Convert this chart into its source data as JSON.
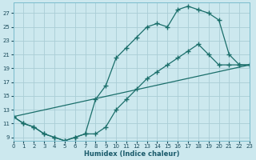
{
  "xlabel": "Humidex (Indice chaleur)",
  "bg_color": "#cce8ee",
  "grid_color": "#aacdd6",
  "line_color": "#1a6e6a",
  "line1_x": [
    0,
    1,
    2,
    3,
    4,
    5,
    6,
    7,
    8,
    9,
    10,
    11,
    12,
    13,
    14,
    15,
    16,
    17,
    18,
    19,
    20,
    21,
    22,
    23
  ],
  "line1_y": [
    12,
    11,
    10.5,
    9.5,
    9,
    8.5,
    9.0,
    9.5,
    14.5,
    16.5,
    20.5,
    22,
    23.5,
    25,
    25.5,
    25,
    27.5,
    28,
    27.5,
    27,
    26,
    21,
    19.5,
    19.5
  ],
  "line2_x": [
    0,
    1,
    2,
    3,
    4,
    5,
    6,
    7,
    8,
    9,
    10,
    11,
    12,
    13,
    14,
    15,
    16,
    17,
    18,
    19,
    20,
    21,
    22,
    23
  ],
  "line2_y": [
    12,
    11,
    10.5,
    9.5,
    9,
    8.5,
    9.0,
    9.5,
    9.5,
    10.5,
    13,
    14.5,
    16,
    17.5,
    18.5,
    19.5,
    20.5,
    21.5,
    22.5,
    21,
    19.5,
    19.5,
    19.5,
    19.5
  ],
  "line3_x": [
    0,
    23
  ],
  "line3_y": [
    12,
    19.5
  ],
  "xlim": [
    0,
    23
  ],
  "ylim": [
    8.5,
    28.5
  ],
  "yticks": [
    9,
    11,
    13,
    15,
    17,
    19,
    21,
    23,
    25,
    27
  ],
  "xticks": [
    0,
    1,
    2,
    3,
    4,
    5,
    6,
    7,
    8,
    9,
    10,
    11,
    12,
    13,
    14,
    15,
    16,
    17,
    18,
    19,
    20,
    21,
    22,
    23
  ]
}
